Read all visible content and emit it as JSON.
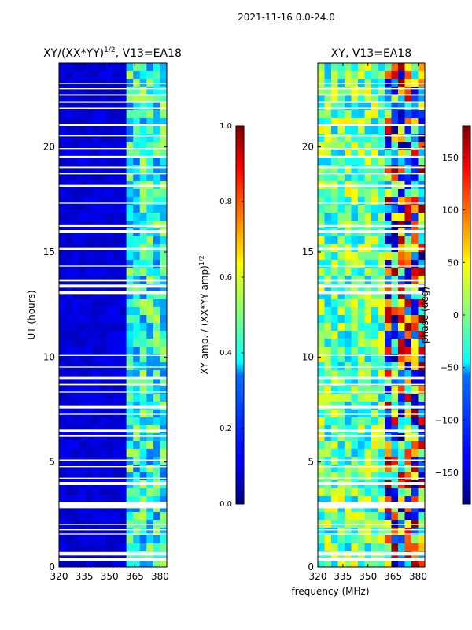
{
  "figure": {
    "suptitle": "2021-11-16 0.0-24.0",
    "shared_xlabel": "frequency (MHz)"
  },
  "chart_data": [
    {
      "type": "heatmap",
      "title_main": "XY/(XX*YY)",
      "title_exp": "1/2",
      "title_tail": ", V13=EA18",
      "xlabel": "frequency (MHz)",
      "ylabel": "UT (hours)",
      "xlim": [
        320,
        384
      ],
      "ylim": [
        0,
        24
      ],
      "xticks": [
        320,
        335,
        350,
        365,
        380
      ],
      "yticks": [
        0,
        5,
        10,
        15,
        20
      ],
      "colorbar": {
        "label_main": "XY amp. / (XX*YY amp)",
        "label_exp": "1/2",
        "range": [
          0.0,
          1.0
        ],
        "ticks": [
          "0.0",
          "0.2",
          "0.4",
          "0.6",
          "0.8",
          "1.0"
        ],
        "colormap": "jet"
      },
      "notes": "Mostly low normalized amplitude (~0.05-0.1) below 361 MHz; higher amplitude (~0.3-0.6) striped band between 361 and 384 MHz."
    },
    {
      "type": "heatmap",
      "title": "XY, V13=EA18",
      "xlabel": "frequency (MHz)",
      "ylabel": "",
      "xlim": [
        320,
        384
      ],
      "ylim": [
        0,
        24
      ],
      "xticks": [
        320,
        335,
        350,
        365,
        380
      ],
      "yticks": [
        0,
        5,
        10,
        15,
        20
      ],
      "colorbar": {
        "label": "phase (deg)",
        "range": [
          -180,
          180
        ],
        "ticks": [
          "150",
          "100",
          "50",
          "0",
          "−50",
          "−100",
          "−150"
        ],
        "colormap": "jet"
      },
      "notes": "XY phase varies widely across band; strong red/yellow structures above 360 MHz."
    }
  ],
  "flagged_gaps_ut": [
    [
      0.3,
      0.45
    ],
    [
      0.55,
      0.72
    ],
    [
      1.55,
      1.6
    ],
    [
      1.75,
      1.8
    ],
    [
      2.0,
      2.05
    ],
    [
      2.8,
      3.1
    ],
    [
      3.9,
      4.05
    ],
    [
      4.2,
      4.25
    ],
    [
      4.75,
      4.8
    ],
    [
      5.05,
      5.12
    ],
    [
      6.2,
      6.3
    ],
    [
      6.45,
      6.55
    ],
    [
      7.25,
      7.3
    ],
    [
      7.55,
      7.7
    ],
    [
      8.3,
      8.35
    ],
    [
      8.65,
      8.75
    ],
    [
      8.95,
      9.05
    ],
    [
      9.5,
      9.55
    ],
    [
      10.05,
      10.1
    ],
    [
      13.0,
      13.15
    ],
    [
      13.3,
      13.45
    ],
    [
      13.6,
      13.7
    ],
    [
      14.3,
      14.35
    ],
    [
      15.1,
      15.2
    ],
    [
      15.9,
      16.05
    ],
    [
      16.2,
      16.28
    ],
    [
      17.3,
      17.35
    ],
    [
      18.1,
      18.2
    ],
    [
      18.7,
      18.75
    ],
    [
      19.0,
      19.07
    ],
    [
      19.5,
      19.58
    ],
    [
      19.9,
      19.95
    ],
    [
      20.5,
      20.55
    ],
    [
      21.0,
      21.08
    ],
    [
      21.8,
      21.88
    ],
    [
      22.1,
      22.18
    ],
    [
      22.45,
      22.52
    ],
    [
      22.75,
      22.8
    ],
    [
      23.0,
      23.05
    ]
  ]
}
